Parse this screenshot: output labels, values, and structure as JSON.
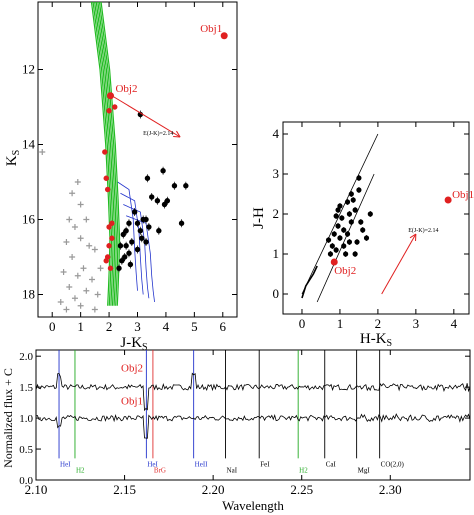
{
  "colors": {
    "obj": "#e02020",
    "isochrone": "#22bb22",
    "track": "#2233cc",
    "grey": "#999999",
    "hydrogen_line": "#2233cc",
    "h2_line": "#22aa22",
    "brg_line": "#e03030"
  },
  "chart_data": [
    {
      "type": "scatter",
      "panel": "color-magnitude",
      "xlabel": "J-K",
      "xlabel_sub": "S",
      "ylabel": "K",
      "ylabel_sub": "S",
      "xlim": [
        -0.5,
        6.5
      ],
      "ylim": [
        18.6,
        10.2
      ],
      "y_inverted": true,
      "xticks": [
        0,
        1,
        2,
        3,
        4,
        5,
        6
      ],
      "yticks": [
        12,
        14,
        16,
        18
      ],
      "reddening_label": "E(J-K)=2.14",
      "reddening_vector": {
        "from": [
          2.1,
          12.7
        ],
        "to": [
          4.5,
          13.8
        ]
      },
      "objects": [
        {
          "name": "Obj1",
          "x": 6.05,
          "y": 11.1
        },
        {
          "name": "Obj2",
          "x": 2.05,
          "y": 12.7
        }
      ],
      "red_points": [
        [
          2.2,
          13.0
        ],
        [
          2.0,
          13.1
        ],
        [
          1.85,
          14.2
        ],
        [
          1.9,
          14.9
        ],
        [
          1.95,
          15.2
        ],
        [
          2.0,
          16.2
        ],
        [
          2.1,
          16.5
        ],
        [
          2.0,
          16.7
        ],
        [
          1.95,
          17.0
        ],
        [
          2.1,
          16.1
        ],
        [
          1.9,
          17.1
        ],
        [
          2.05,
          17.3
        ]
      ],
      "black_points": [
        [
          3.1,
          13.2
        ],
        [
          3.35,
          14.9
        ],
        [
          3.9,
          14.7
        ],
        [
          4.3,
          15.1
        ],
        [
          3.5,
          15.4
        ],
        [
          4.05,
          15.5
        ],
        [
          3.7,
          15.5
        ],
        [
          3.95,
          15.6
        ],
        [
          2.9,
          15.8
        ],
        [
          3.2,
          16.0
        ],
        [
          3.3,
          16.0
        ],
        [
          4.55,
          16.1
        ],
        [
          3.0,
          16.1
        ],
        [
          3.4,
          16.2
        ],
        [
          2.7,
          16.1
        ],
        [
          2.6,
          16.3
        ],
        [
          3.1,
          16.3
        ],
        [
          2.5,
          16.4
        ],
        [
          3.75,
          16.3
        ],
        [
          3.15,
          16.5
        ],
        [
          2.8,
          16.6
        ],
        [
          2.6,
          16.7
        ],
        [
          2.4,
          16.7
        ],
        [
          3.3,
          16.6
        ],
        [
          2.7,
          16.9
        ],
        [
          2.55,
          17.0
        ],
        [
          3.0,
          16.8
        ],
        [
          2.45,
          17.1
        ],
        [
          2.35,
          17.3
        ],
        [
          2.75,
          17.2
        ],
        [
          4.7,
          15.1
        ]
      ],
      "grey_points": [
        [
          -0.35,
          14.2
        ],
        [
          0.7,
          15.3
        ],
        [
          0.9,
          15.0
        ],
        [
          1.0,
          15.6
        ],
        [
          0.6,
          16.0
        ],
        [
          0.8,
          16.2
        ],
        [
          1.2,
          16.0
        ],
        [
          1.0,
          16.5
        ],
        [
          0.5,
          16.6
        ],
        [
          1.3,
          16.7
        ],
        [
          0.7,
          17.0
        ],
        [
          1.5,
          16.8
        ],
        [
          1.1,
          17.3
        ],
        [
          0.4,
          17.4
        ],
        [
          0.9,
          17.5
        ],
        [
          1.4,
          17.6
        ],
        [
          0.6,
          17.8
        ],
        [
          1.2,
          17.9
        ],
        [
          0.8,
          18.1
        ],
        [
          1.6,
          18.0
        ],
        [
          0.3,
          18.2
        ],
        [
          1.0,
          18.3
        ],
        [
          1.7,
          17.3
        ],
        [
          1.5,
          18.4
        ],
        [
          0.5,
          18.4
        ]
      ],
      "isochrone_x": [
        1.55,
        1.85,
        2.05,
        2.15,
        2.2,
        2.18,
        2.15,
        2.12
      ],
      "isochrone_y": [
        10.2,
        12.0,
        14.0,
        15.5,
        16.5,
        17.2,
        17.8,
        18.3
      ],
      "tracks": [
        {
          "x": [
            2.3,
            2.7,
            2.85,
            2.9,
            2.95,
            3.0
          ],
          "y": [
            15.0,
            15.2,
            16.0,
            16.8,
            17.4,
            17.9
          ]
        },
        {
          "x": [
            2.4,
            2.9,
            3.05,
            3.1,
            3.15,
            3.2
          ],
          "y": [
            15.3,
            15.5,
            16.3,
            17.0,
            17.6,
            18.0
          ]
        },
        {
          "x": [
            2.5,
            3.1,
            3.25,
            3.3,
            3.35,
            3.4
          ],
          "y": [
            15.6,
            15.8,
            16.6,
            17.3,
            17.8,
            18.1
          ]
        },
        {
          "x": [
            2.6,
            3.3,
            3.45,
            3.5,
            3.55,
            3.6
          ],
          "y": [
            15.9,
            16.1,
            16.9,
            17.5,
            17.9,
            18.2
          ]
        }
      ]
    },
    {
      "type": "scatter",
      "panel": "color-color",
      "xlabel": "H-K",
      "xlabel_sub": "S",
      "ylabel": "J-H",
      "xlim": [
        -0.5,
        4.4
      ],
      "ylim": [
        -0.5,
        4.3
      ],
      "xticks": [
        0,
        1,
        2,
        3,
        4
      ],
      "yticks": [
        0,
        1,
        2,
        3,
        4
      ],
      "reddening_label": "E(J-K)=2.14",
      "reddening_vector": {
        "from": [
          2.1,
          0.0
        ],
        "to": [
          3.0,
          1.5
        ]
      },
      "reddening_band": [
        {
          "from": [
            0.0,
            0.0
          ],
          "to": [
            2.0,
            4.0
          ]
        },
        {
          "from": [
            0.4,
            -0.2
          ],
          "to": [
            1.9,
            3.0
          ]
        }
      ],
      "objects": [
        {
          "name": "Obj1",
          "x": 3.85,
          "y": 2.35
        },
        {
          "name": "Obj2",
          "x": 0.85,
          "y": 0.8
        }
      ],
      "black_points": [
        [
          0.7,
          1.35
        ],
        [
          0.9,
          1.1
        ],
        [
          1.0,
          1.4
        ],
        [
          1.1,
          1.2
        ],
        [
          1.2,
          1.5
        ],
        [
          1.3,
          1.8
        ],
        [
          1.4,
          2.1
        ],
        [
          1.5,
          2.6
        ],
        [
          1.35,
          2.35
        ],
        [
          1.25,
          2.0
        ],
        [
          0.95,
          1.7
        ],
        [
          1.05,
          1.9
        ],
        [
          0.85,
          1.5
        ],
        [
          1.15,
          1.0
        ],
        [
          1.45,
          1.3
        ],
        [
          1.6,
          1.6
        ],
        [
          1.8,
          2.0
        ],
        [
          0.8,
          1.2
        ],
        [
          1.2,
          2.3
        ],
        [
          1.0,
          2.2
        ],
        [
          0.9,
          1.95
        ],
        [
          1.3,
          2.5
        ],
        [
          1.5,
          2.9
        ],
        [
          1.1,
          1.6
        ],
        [
          0.75,
          1.0
        ],
        [
          1.4,
          1.0
        ],
        [
          1.55,
          1.8
        ],
        [
          1.7,
          1.4
        ],
        [
          0.95,
          2.1
        ],
        [
          1.25,
          1.3
        ]
      ],
      "dwarf_x": [
        0.0,
        0.1,
        0.2,
        0.3,
        0.35,
        0.4
      ],
      "dwarf_y": [
        -0.1,
        0.2,
        0.35,
        0.5,
        0.6,
        0.7
      ]
    },
    {
      "type": "line",
      "panel": "spectra",
      "xlabel": "Wavelength",
      "ylabel": "Normalized flux + C",
      "xlim": [
        2.1,
        2.345
      ],
      "ylim": [
        0.0,
        2.1
      ],
      "xticks": [
        2.1,
        2.15,
        2.2,
        2.25,
        2.3
      ],
      "xtick_labels": [
        "2.10",
        "2.15",
        "2.20",
        "2.25",
        "2.30"
      ],
      "yticks": [
        0.0,
        0.5,
        1.0,
        1.5,
        2.0
      ],
      "ytick_labels": [
        "0.0",
        "0.5",
        "1.0",
        "1.5",
        "2.0"
      ],
      "series": [
        {
          "name": "Obj2",
          "offset": 1.5
        },
        {
          "name": "Obj1",
          "offset": 1.0
        }
      ],
      "lines": [
        {
          "label": "HeI",
          "wl": 2.113,
          "color": "hydrogen_line"
        },
        {
          "label": "H2",
          "wl": 2.122,
          "color": "h2_line"
        },
        {
          "label": "HeI",
          "wl": 2.1623,
          "color": "hydrogen_line"
        },
        {
          "label": "BrG",
          "wl": 2.166,
          "color": "brg_line"
        },
        {
          "label": "HeII",
          "wl": 2.189,
          "color": "hydrogen_line"
        },
        {
          "label": "NaI",
          "wl": 2.207,
          "color": "black"
        },
        {
          "label": "FeI",
          "wl": 2.226,
          "color": "black"
        },
        {
          "label": "H2",
          "wl": 2.248,
          "color": "h2_line"
        },
        {
          "label": "CaI",
          "wl": 2.263,
          "color": "black"
        },
        {
          "label": "MgI",
          "wl": 2.281,
          "color": "black"
        },
        {
          "label": "CO(2,0)",
          "wl": 2.294,
          "color": "black"
        }
      ]
    }
  ]
}
